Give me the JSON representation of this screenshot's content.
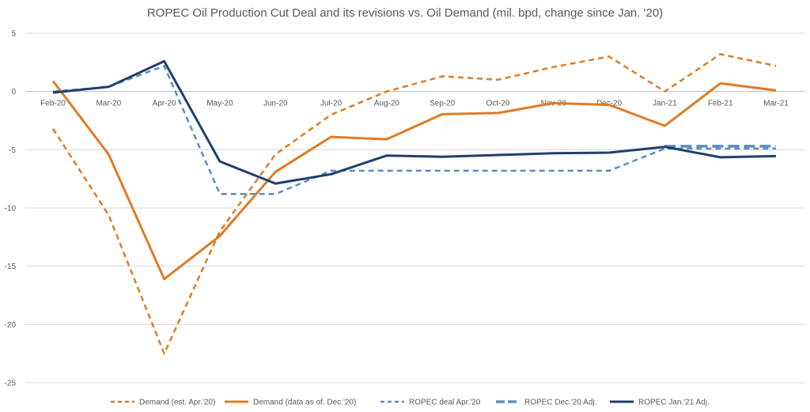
{
  "chart_data": {
    "type": "line",
    "title": "ROPEC Oil Production Cut Deal and its revisions vs. Oil Demand (mil. bpd, change since Jan. '20)",
    "xlabel": "",
    "ylabel": "",
    "ylim": [
      -25,
      5
    ],
    "yticks": [
      5,
      0,
      -5,
      -10,
      -15,
      -20,
      -25
    ],
    "grid": true,
    "legend": "bottom",
    "categories": [
      "Feb-20",
      "Mar-20",
      "Apr-20",
      "May-20",
      "Jun-20",
      "Jul-20",
      "Aug-20",
      "Sep-20",
      "Oct-20",
      "Nov-20",
      "Dec-20",
      "Jan-21",
      "Feb-21",
      "Mar-21"
    ],
    "series": [
      {
        "name": "Demand (est. Apr.'20)",
        "color": "#E07B24",
        "dash": "dash",
        "width": 2.5,
        "values": [
          -3.2,
          -10.6,
          -22.5,
          -12.0,
          -5.4,
          -2.0,
          0.0,
          1.3,
          1.0,
          2.1,
          3.0,
          0.0,
          3.2,
          2.2
        ]
      },
      {
        "name": "Demand (data as of. Dec.'20)",
        "color": "#E07B24",
        "dash": "solid",
        "width": 3,
        "values": [
          0.9,
          -5.4,
          -16.1,
          -12.4,
          -6.9,
          -3.9,
          -4.1,
          -1.95,
          -1.85,
          -1.0,
          -1.15,
          -2.95,
          0.7,
          0.1
        ]
      },
      {
        "name": "ROPEC deal Apr.'20",
        "color": "#5B8DBE",
        "dash": "dash",
        "width": 2.5,
        "values": [
          0.0,
          0.4,
          2.2,
          -8.8,
          -8.8,
          -6.8,
          -6.8,
          -6.8,
          -6.8,
          -6.8,
          -6.8,
          -4.9,
          -4.9,
          -4.9
        ]
      },
      {
        "name": "ROPEC Dec.'20 Adj.",
        "color": "#5B8DBE",
        "dash": "longdash",
        "width": 3.5,
        "values": [
          null,
          null,
          null,
          null,
          null,
          null,
          null,
          null,
          null,
          null,
          null,
          -4.7,
          -4.7,
          -4.7
        ]
      },
      {
        "name": "ROPEC Jan.'21 Adj.",
        "color": "#203F6C",
        "dash": "solid",
        "width": 3,
        "values": [
          -0.1,
          0.4,
          2.6,
          -6.0,
          -7.9,
          -7.1,
          -5.5,
          -5.6,
          -5.45,
          -5.3,
          -5.25,
          -4.75,
          -5.65,
          -5.55
        ]
      }
    ]
  }
}
